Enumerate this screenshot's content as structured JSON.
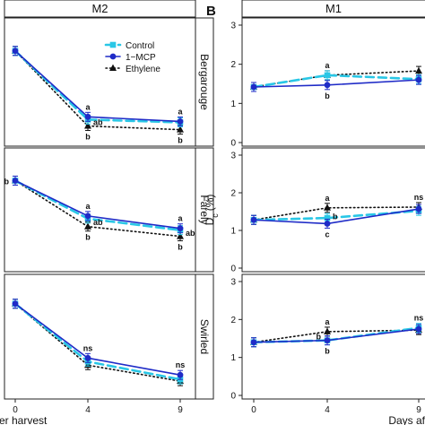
{
  "colors": {
    "Control": "#29c7e6",
    "1-MCP": "#1f2bc7",
    "Ethylene": "#111111"
  },
  "chart_data": [
    {
      "type": "line",
      "panel_label": "",
      "strip": "M2",
      "xlabel": "er harvest",
      "ylabel": "",
      "x_ticks": [
        "0",
        "4",
        "9"
      ],
      "legend": {
        "placement": "top-right",
        "entries": [
          "Control",
          "1−MCP",
          "Ethylene"
        ]
      },
      "facets": [
        {
          "name": "Bergarouge",
          "x": [
            0,
            4,
            9
          ],
          "series": [
            {
              "name": "Control",
              "values": [
                1.84,
                1.09,
                1.06
              ]
            },
            {
              "name": "1−MCP",
              "values": [
                1.84,
                1.12,
                1.07
              ]
            },
            {
              "name": "Ethylene",
              "values": [
                1.84,
                1.02,
                0.98
              ]
            }
          ],
          "labels": [
            {
              "x": 4,
              "side": "above",
              "text": "a"
            },
            {
              "x": 4,
              "side": "right",
              "text": "ab"
            },
            {
              "x": 4,
              "side": "below",
              "text": "b"
            },
            {
              "x": 9,
              "side": "above",
              "text": "a"
            },
            {
              "x": 9,
              "side": "below",
              "text": "b"
            }
          ]
        },
        {
          "name": "Farely",
          "x": [
            0,
            4,
            9
          ],
          "series": [
            {
              "name": "Control",
              "values": [
                1.83,
                1.4,
                1.27
              ]
            },
            {
              "name": "1−MCP",
              "values": [
                1.83,
                1.43,
                1.29
              ]
            },
            {
              "name": "Ethylene",
              "values": [
                1.83,
                1.31,
                1.2
              ]
            }
          ],
          "labels": [
            {
              "x": 4,
              "side": "above",
              "text": "a"
            },
            {
              "x": 4,
              "side": "right",
              "text": "ab"
            },
            {
              "x": 4,
              "side": "below",
              "text": "b"
            },
            {
              "x": 9,
              "side": "above",
              "text": "a"
            },
            {
              "x": 9,
              "side": "right",
              "text": "ab"
            },
            {
              "x": 9,
              "side": "below",
              "text": "b"
            },
            {
              "x": 0,
              "side": "left",
              "text": "b"
            }
          ]
        },
        {
          "name": "Swirled",
          "x": [
            0,
            4,
            9
          ],
          "series": [
            {
              "name": "Control",
              "values": [
                1.87,
                1.22,
                1.02
              ]
            },
            {
              "name": "1−MCP",
              "values": [
                1.87,
                1.26,
                1.07
              ]
            },
            {
              "name": "Ethylene",
              "values": [
                1.87,
                1.18,
                1.0
              ]
            }
          ],
          "labels": [
            {
              "x": 4,
              "side": "above",
              "text": "ns"
            },
            {
              "x": 9,
              "side": "above",
              "text": "ns"
            }
          ]
        }
      ]
    },
    {
      "type": "line",
      "panel_label": "B",
      "strip": "M1",
      "xlabel": "Days af",
      "ylabel": "D",
      "ylabel_sub": "c",
      "ylabel_unit": "(%)",
      "x_ticks": [
        "0",
        "4",
        "9"
      ],
      "ylim": [
        0,
        3
      ],
      "y_ticks": [
        "0",
        "1",
        "2",
        "3"
      ],
      "facets": [
        {
          "x": [
            0,
            4,
            9
          ],
          "series": [
            {
              "name": "Control",
              "values": [
                1.42,
                1.72,
                1.62
              ]
            },
            {
              "name": "1−MCP",
              "values": [
                1.42,
                1.47,
                1.6
              ]
            },
            {
              "name": "Ethylene",
              "values": [
                1.42,
                1.72,
                1.83
              ]
            }
          ],
          "labels": [
            {
              "x": 4,
              "side": "above",
              "text": "a"
            },
            {
              "x": 4,
              "side": "below",
              "text": "b"
            }
          ]
        },
        {
          "x": [
            0,
            4,
            9
          ],
          "series": [
            {
              "name": "Control",
              "values": [
                1.28,
                1.33,
                1.52
              ]
            },
            {
              "name": "1−MCP",
              "values": [
                1.28,
                1.18,
                1.57
              ]
            },
            {
              "name": "Ethylene",
              "values": [
                1.28,
                1.6,
                1.62
              ]
            }
          ],
          "labels": [
            {
              "x": 4,
              "side": "above",
              "text": "a"
            },
            {
              "x": 4,
              "side": "right",
              "text": "b"
            },
            {
              "x": 4,
              "side": "below",
              "text": "c"
            },
            {
              "x": 9,
              "side": "above",
              "text": "ns"
            }
          ]
        },
        {
          "x": [
            0,
            4,
            9
          ],
          "series": [
            {
              "name": "Control",
              "values": [
                1.4,
                1.45,
                1.78
              ]
            },
            {
              "name": "1−MCP",
              "values": [
                1.4,
                1.45,
                1.75
              ]
            },
            {
              "name": "Ethylene",
              "values": [
                1.4,
                1.68,
                1.72
              ]
            }
          ],
          "labels": [
            {
              "x": 4,
              "side": "above",
              "text": "a"
            },
            {
              "x": 4,
              "side": "left",
              "text": "b"
            },
            {
              "x": 4,
              "side": "below",
              "text": "b"
            },
            {
              "x": 9,
              "side": "above",
              "text": "ns"
            }
          ]
        }
      ]
    }
  ]
}
